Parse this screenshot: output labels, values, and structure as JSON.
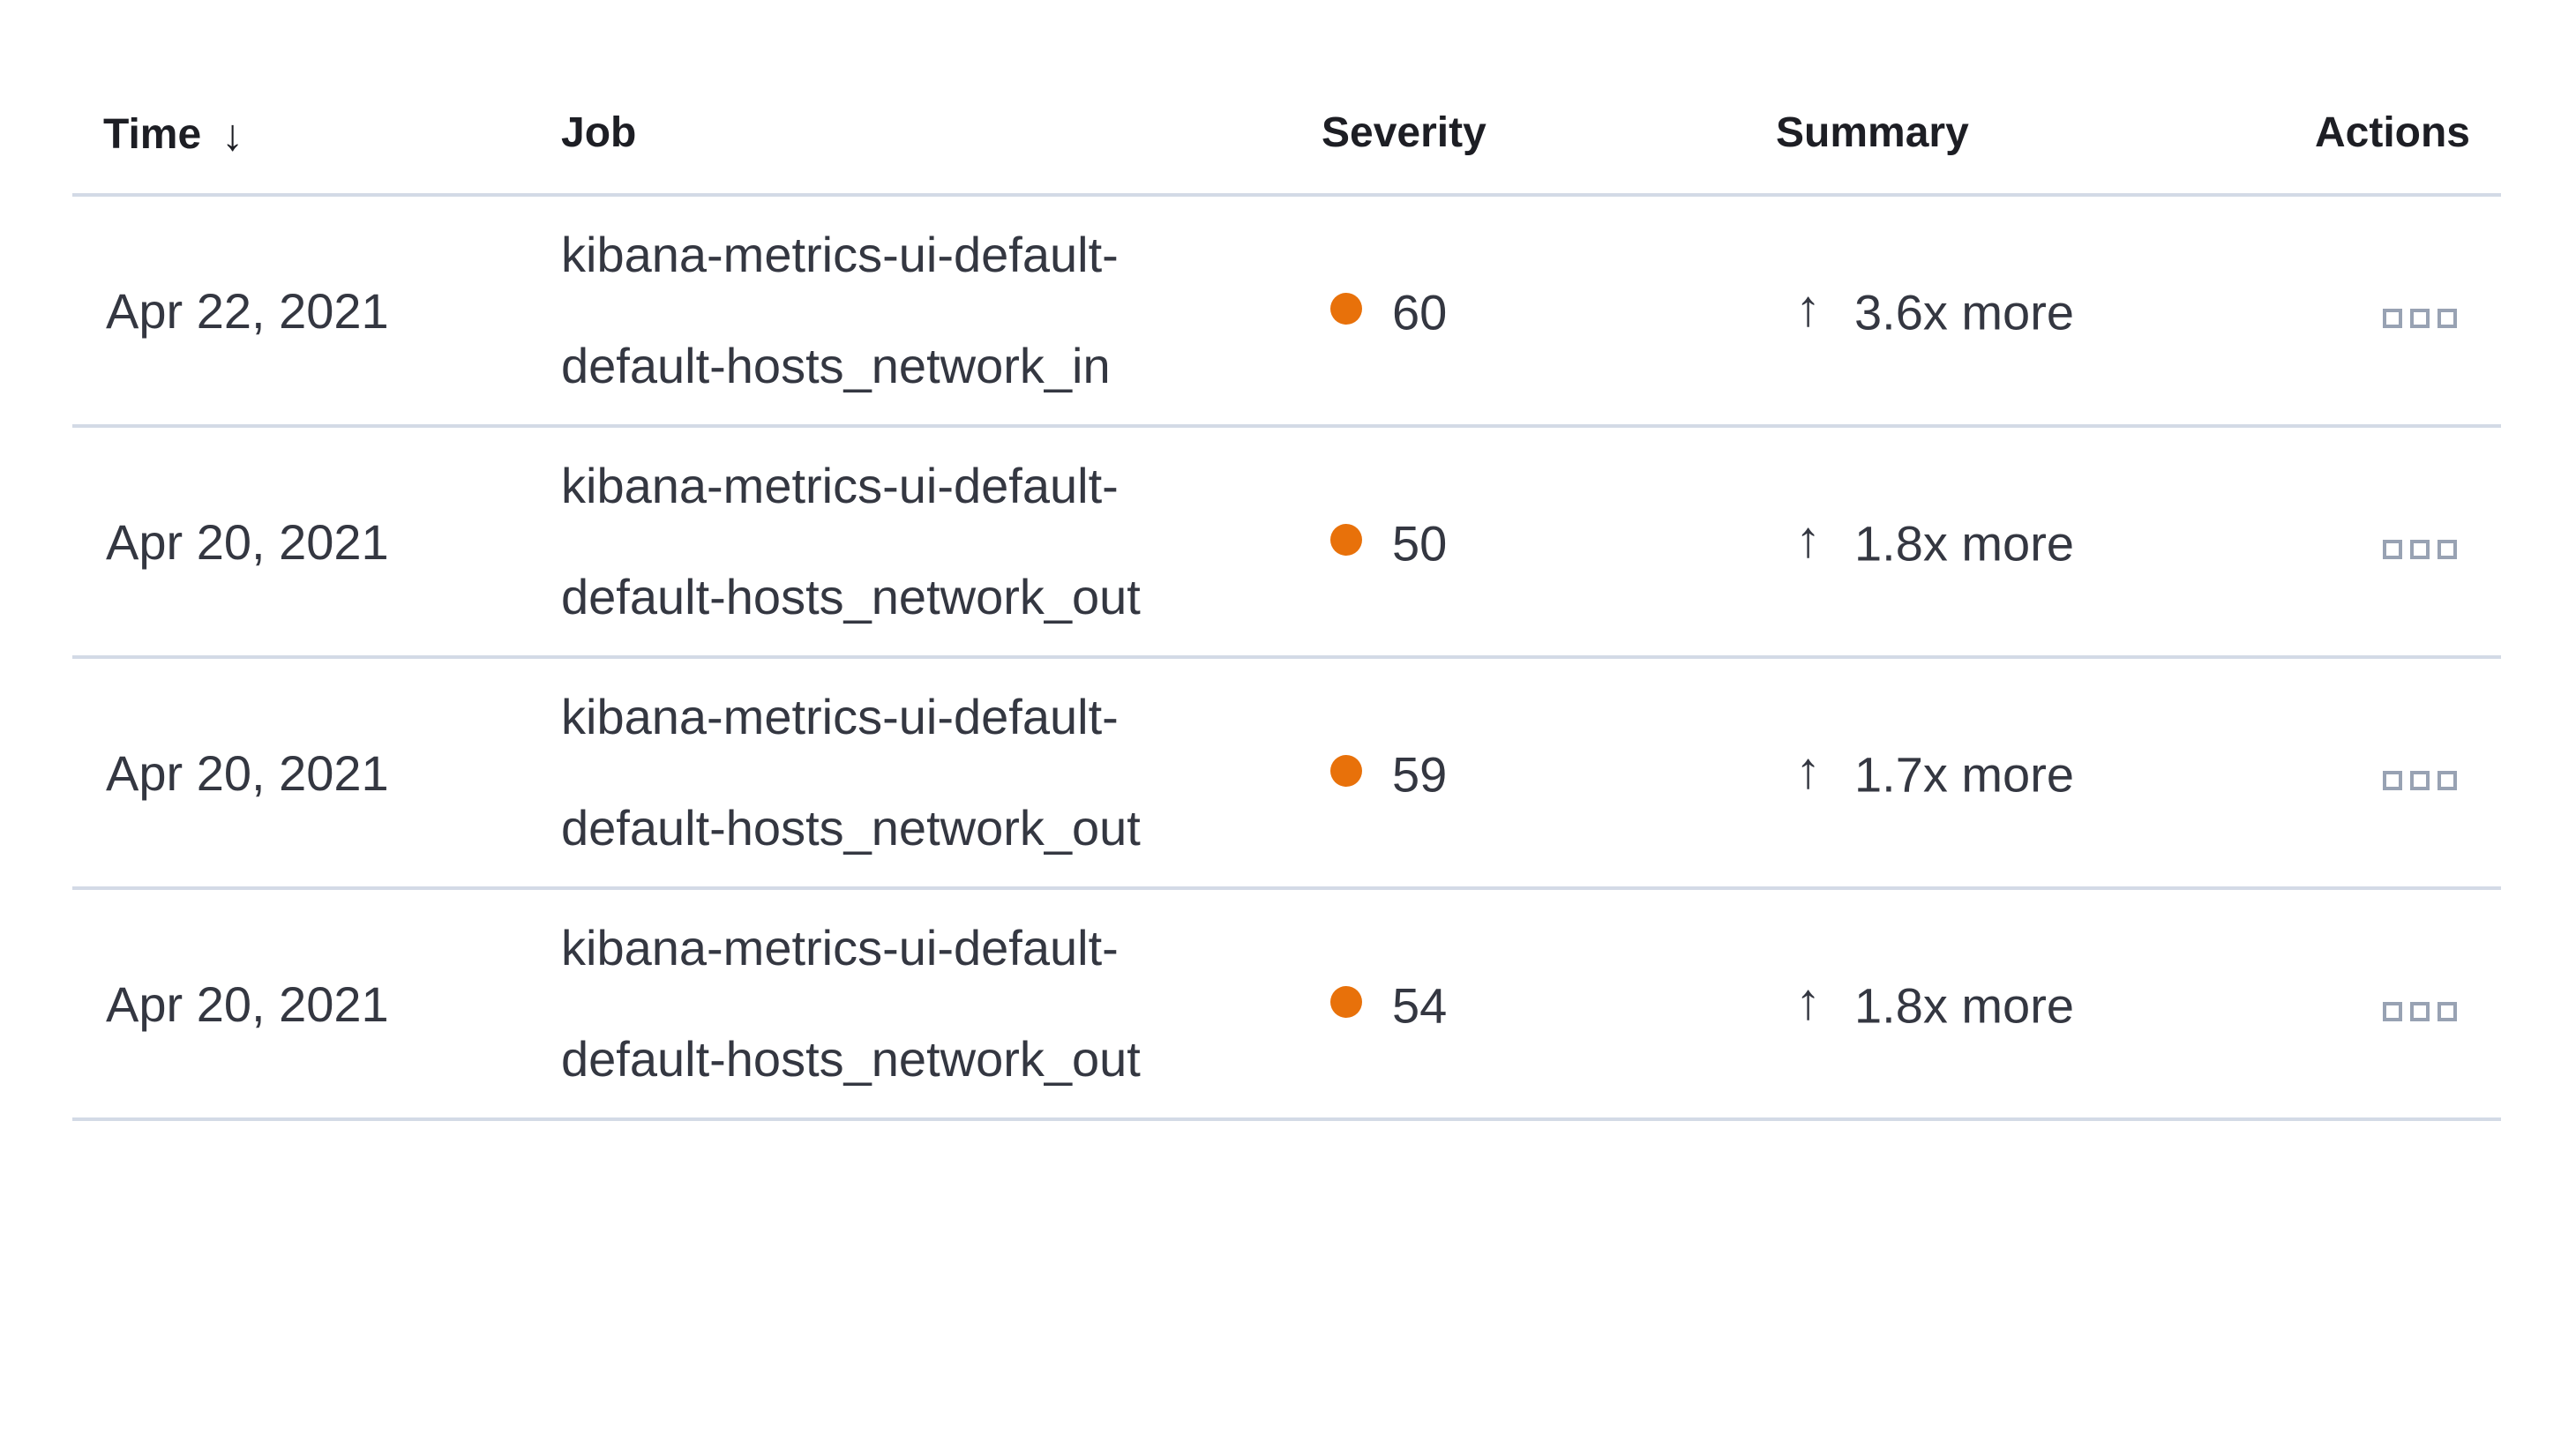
{
  "anomalies_table": {
    "columns": {
      "time": {
        "label": "Time",
        "sorted": "descending"
      },
      "job": {
        "label": "Job"
      },
      "severity": {
        "label": "Severity"
      },
      "summary": {
        "label": "Summary"
      },
      "actions": {
        "label": "Actions"
      }
    },
    "icons": {
      "sort_descending": "↓",
      "trend_up": "↑",
      "row_actions": "boxes-horizontal"
    },
    "colors": {
      "severity_dot": "#e8710a",
      "divider": "#d3dae6",
      "header_text": "#1d1e24",
      "body_text": "#343741",
      "actions_icon": "#98a2b3",
      "background": "#ffffff"
    },
    "rows": [
      {
        "time": "Apr 22, 2021",
        "job_line1": "kibana-metrics-ui-default-",
        "job_line2": "default-hosts_network_in",
        "severity": 60,
        "summary": "3.6x more"
      },
      {
        "time": "Apr 20, 2021",
        "job_line1": "kibana-metrics-ui-default-",
        "job_line2": "default-hosts_network_out",
        "severity": 50,
        "summary": "1.8x more"
      },
      {
        "time": "Apr 20, 2021",
        "job_line1": "kibana-metrics-ui-default-",
        "job_line2": "default-hosts_network_out",
        "severity": 59,
        "summary": "1.7x more"
      },
      {
        "time": "Apr 20, 2021",
        "job_line1": "kibana-metrics-ui-default-",
        "job_line2": "default-hosts_network_out",
        "severity": 54,
        "summary": "1.8x more"
      }
    ]
  }
}
